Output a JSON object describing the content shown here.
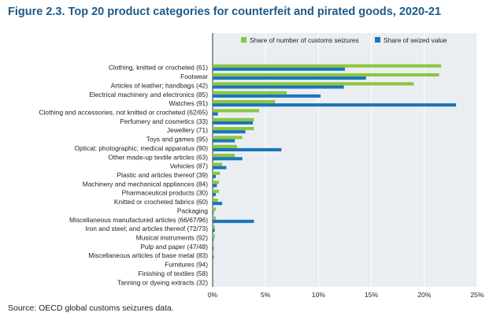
{
  "chart_data": {
    "type": "bar",
    "orientation": "horizontal",
    "title": "Figure 2.3. Top 20 product categories for counterfeit and pirated goods, 2020-21",
    "source": "Source: OECD global customs seizures data.",
    "categories": [
      "Clothing, knitted or crocheted (61)",
      "Footwear",
      "Articles of leather; handbags (42)",
      "Electrical machinery and electronics (85)",
      "Watches (91)",
      "Clothing and accessories, not knitted or crocheted (62/65)",
      "Perfumery and cosmetics (33)",
      "Jewellery (71)",
      "Toys and games (95)",
      "Optical; photographic; medical apparatus (90)",
      "Other made-up textile articles (63)",
      "Vehicles (87)",
      "Plastic and articles thereof (39)",
      "Machinery and mechanical appliances (84)",
      "Pharmaceutical products (30)",
      "Knitted or crocheted fabrics (60)",
      "Packaging",
      "Miscellaneous manufactured articles (66/67/96)",
      "Iron and steel; and articles thereof (72/73)",
      "Musical instruments (92)",
      "Pulp and paper (47/48)",
      "Miscellaneous articles of base metal (83)",
      "Furnitures (94)",
      "Finishing of textiles (58)",
      "Tanning or dyeing extracts (32)"
    ],
    "series": [
      {
        "name": "Share of number of customs seizures",
        "color": "#8cc63f",
        "values": [
          21.6,
          21.4,
          19.0,
          7.0,
          5.9,
          4.4,
          3.9,
          3.9,
          2.8,
          2.3,
          2.1,
          0.9,
          0.7,
          0.6,
          0.6,
          0.5,
          0.3,
          0.3,
          0.2,
          0.2,
          0.1,
          0.1,
          0.1,
          0.1,
          0.1
        ]
      },
      {
        "name": "Share of seized value",
        "color": "#1a75b8",
        "values": [
          12.5,
          14.5,
          12.4,
          10.2,
          23.0,
          0.5,
          3.8,
          3.1,
          2.1,
          6.5,
          2.8,
          1.3,
          0.3,
          0.4,
          0.3,
          0.9,
          0.1,
          3.9,
          0.2,
          0.1,
          0.1,
          0.1,
          0.05,
          0.05,
          0.05
        ]
      }
    ],
    "x_ticks": [
      "0%",
      "5%",
      "10%",
      "15%",
      "20%",
      "25%"
    ],
    "xlim": [
      0,
      25
    ],
    "grid": true,
    "legend_position": "top-right"
  }
}
